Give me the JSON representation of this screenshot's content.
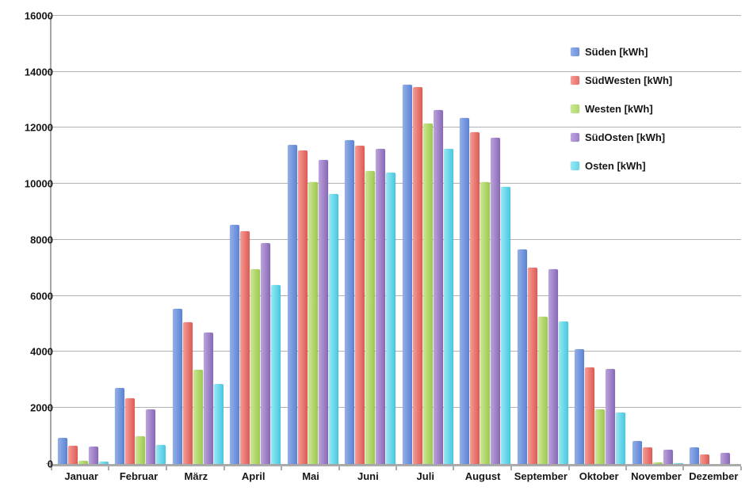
{
  "chart_data": {
    "type": "bar",
    "title": "",
    "xlabel": "",
    "ylabel": "",
    "grid": true,
    "legend_position": "top-right",
    "categories": [
      "Januar",
      "Februar",
      "März",
      "April",
      "Mai",
      "Juni",
      "Juli",
      "August",
      "September",
      "Oktober",
      "November",
      "Dezember"
    ],
    "y_axis": {
      "min": 0,
      "max": 16000,
      "step": 2000,
      "tick_labels": [
        "0",
        "2000",
        "4000",
        "6000",
        "8000",
        "10000",
        "12000",
        "14000",
        "16000"
      ]
    },
    "series": [
      {
        "name": "Süden [kWh]",
        "key": "sueden",
        "legend_color": "#6b90da",
        "color_light": "#93afe9",
        "color_dark": "#5b82d3",
        "values": [
          940,
          2700,
          5550,
          8550,
          11400,
          11550,
          13550,
          12350,
          7650,
          4100,
          820,
          580
        ]
      },
      {
        "name": "SüdWesten [kWh]",
        "key": "suedwesten",
        "legend_color": "#e56f68",
        "color_light": "#f69b95",
        "color_dark": "#dc5b53",
        "values": [
          650,
          2340,
          5050,
          8300,
          11200,
          11350,
          13450,
          11850,
          7000,
          3450,
          590,
          330
        ]
      },
      {
        "name": "Westen [kWh]",
        "key": "westen",
        "legend_color": "#b2d76a",
        "color_light": "#cbe693",
        "color_dark": "#9dc94e",
        "values": [
          110,
          1000,
          3350,
          6950,
          10050,
          10450,
          12150,
          10050,
          5250,
          1950,
          70,
          0
        ]
      },
      {
        "name": "SüdOsten [kWh]",
        "key": "suedosten",
        "legend_color": "#9c7fc8",
        "color_light": "#bca4db",
        "color_dark": "#8768b7",
        "values": [
          630,
          1940,
          4700,
          7900,
          10850,
          11250,
          12650,
          11650,
          6950,
          3400,
          510,
          400
        ]
      },
      {
        "name": "Osten [kWh]",
        "key": "osten",
        "legend_color": "#66d6e9",
        "color_light": "#97e9f4",
        "color_dark": "#46c7de",
        "values": [
          90,
          670,
          2860,
          6400,
          9650,
          10400,
          11250,
          9900,
          5100,
          1850,
          40,
          0
        ]
      }
    ]
  }
}
